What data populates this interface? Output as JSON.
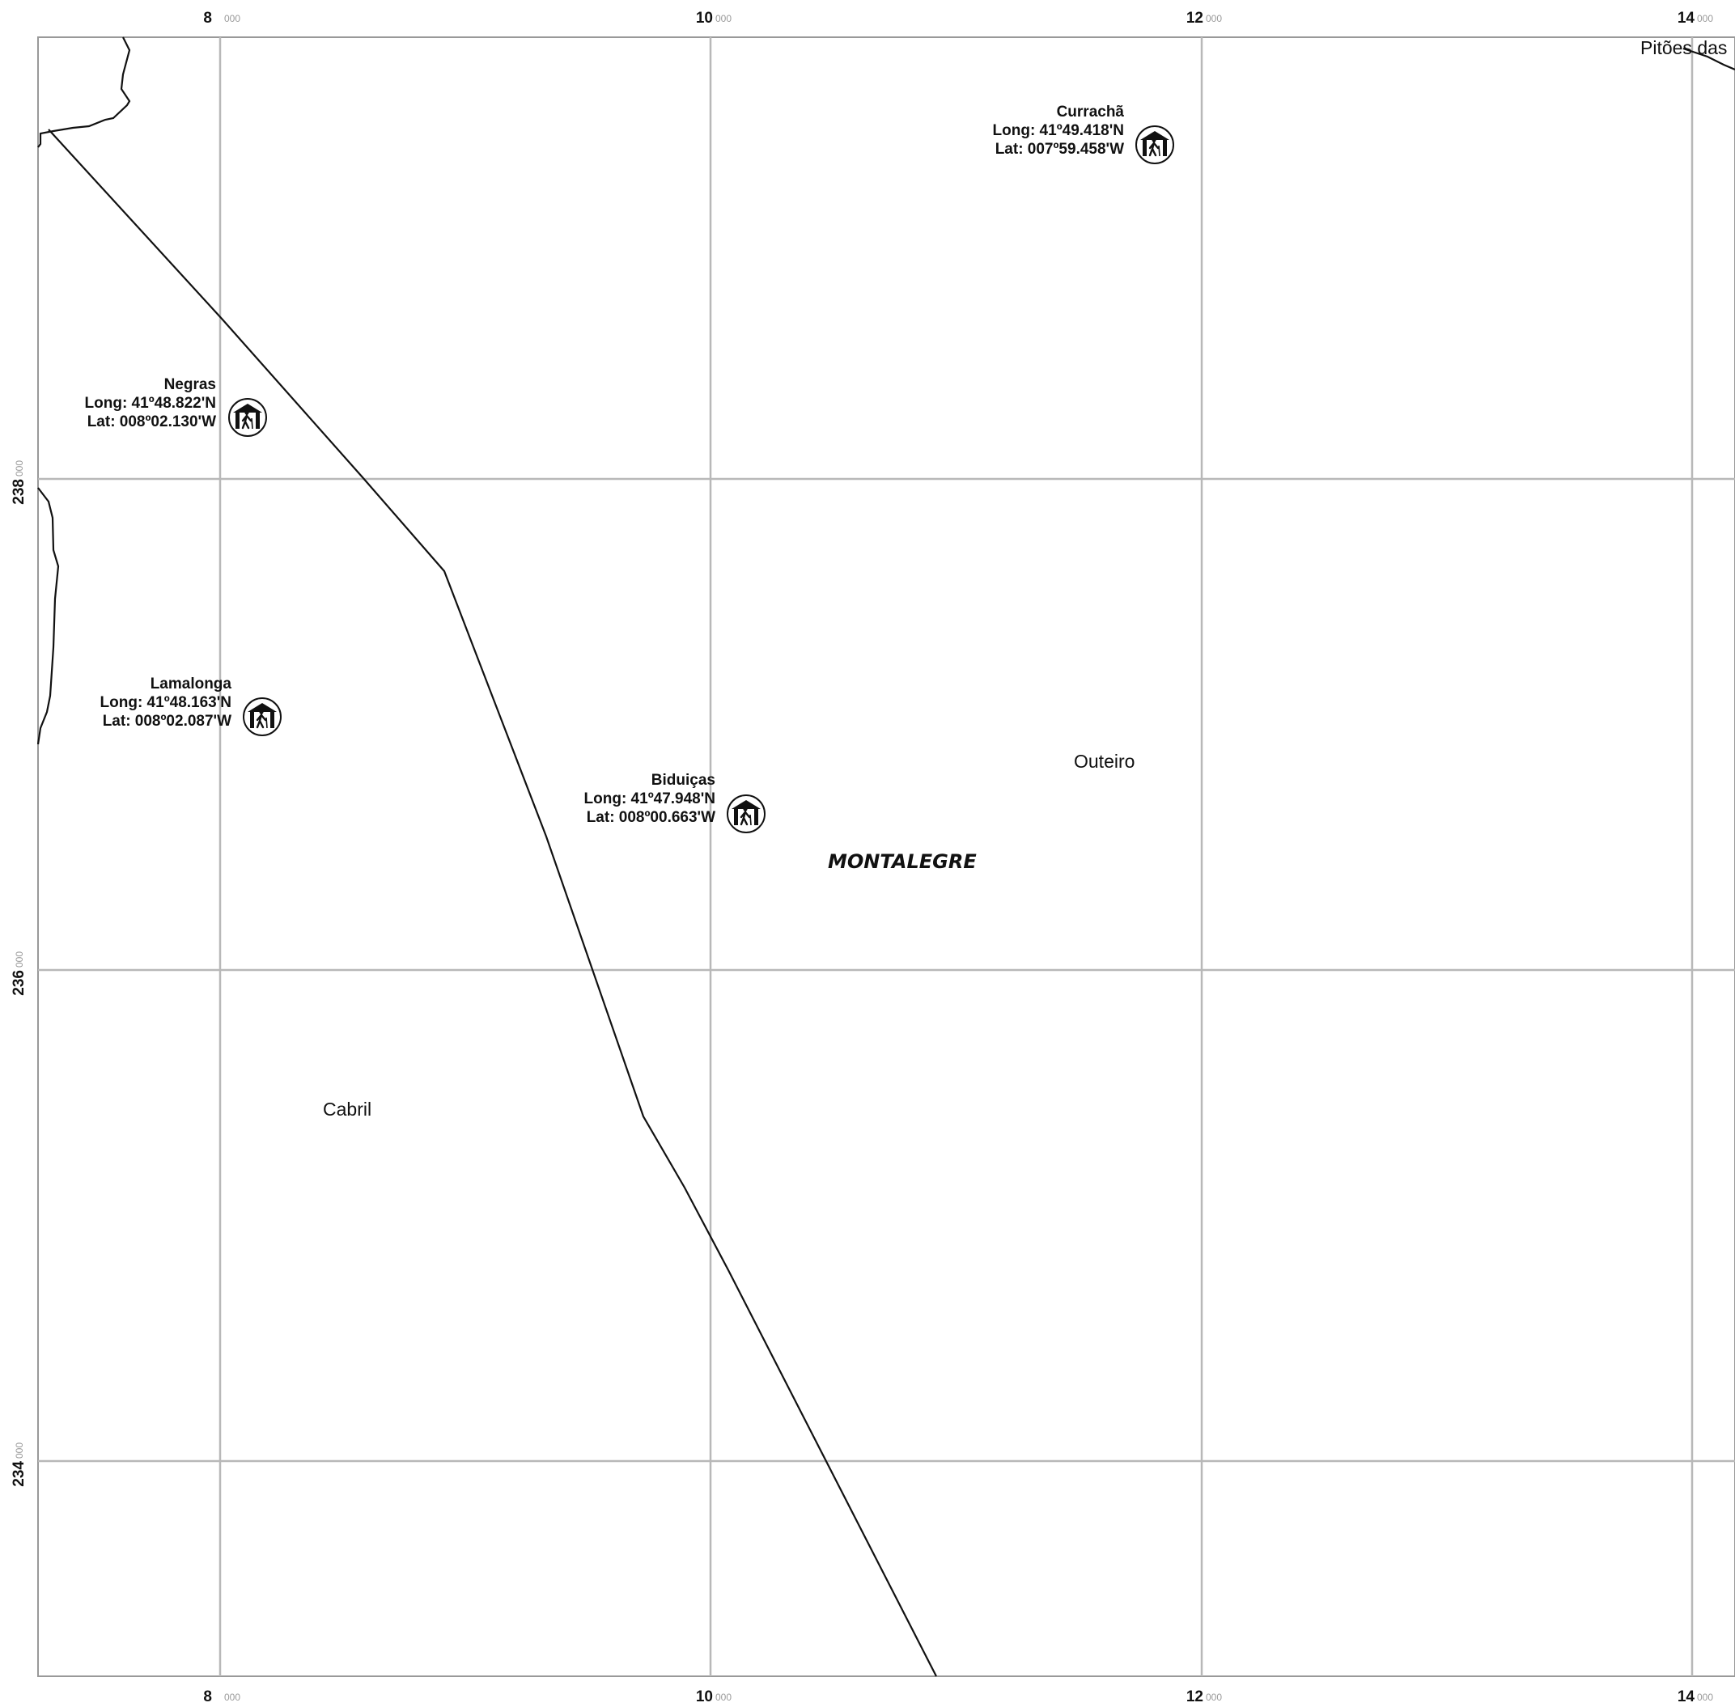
{
  "map": {
    "region_label": "MONTALEGRE",
    "grid": {
      "x_labels": [
        {
          "major": "8",
          "minor": "000"
        },
        {
          "major": "10",
          "minor": "000"
        },
        {
          "major": "12",
          "minor": "000"
        },
        {
          "major": "14",
          "minor": "000"
        }
      ],
      "y_labels": [
        {
          "major": "238",
          "minor": "000"
        },
        {
          "major": "236",
          "minor": "000"
        },
        {
          "major": "234",
          "minor": "000"
        }
      ]
    },
    "places": [
      {
        "id": "pitoes",
        "name": "Pitões das"
      },
      {
        "id": "outeiro",
        "name": "Outeiro"
      },
      {
        "id": "cabril",
        "name": "Cabril"
      }
    ],
    "shelters": [
      {
        "id": "currancha",
        "name": "Currachã",
        "long": "Long: 41º49.418'N",
        "lat": "Lat: 007º59.458'W",
        "icon": "hiking-shelter-icon"
      },
      {
        "id": "negras",
        "name": "Negras",
        "long": "Long: 41º48.822'N",
        "lat": "Lat: 008º02.130'W",
        "icon": "hiking-shelter-icon"
      },
      {
        "id": "lamalonga",
        "name": "Lamalonga",
        "long": "Long: 41º48.163'N",
        "lat": "Lat: 008º02.087'W",
        "icon": "hiking-shelter-icon"
      },
      {
        "id": "biduicas",
        "name": "Biduiças",
        "long": "Long: 41º47.948'N",
        "lat": "Lat: 008º00.663'W",
        "icon": "hiking-shelter-icon"
      }
    ]
  }
}
